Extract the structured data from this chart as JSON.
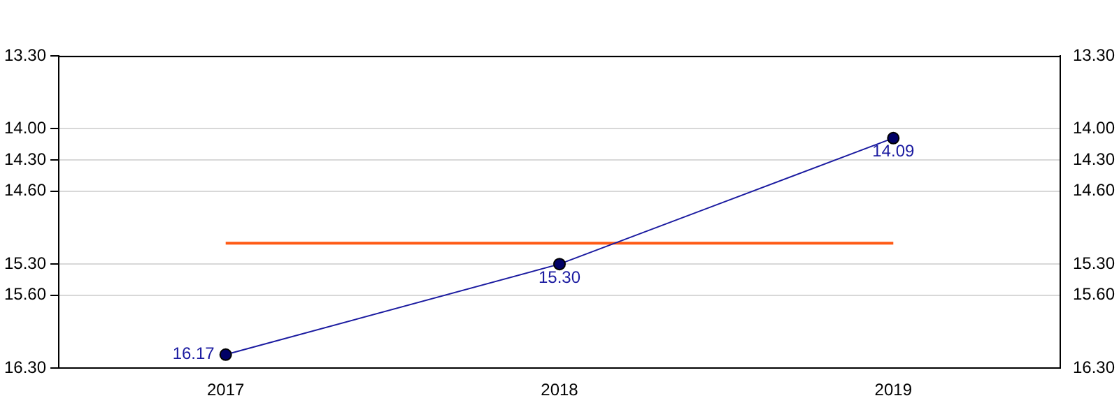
{
  "chart_data": {
    "type": "line",
    "categories": [
      "2017",
      "2018",
      "2019"
    ],
    "series": [
      {
        "color": "#1a1aa0",
        "values": [
          16.17,
          15.3,
          14.09
        ],
        "value_labels": [
          "16.17",
          "15.30",
          "14.09"
        ],
        "marker": "circle"
      },
      {
        "color": "#ff5a14",
        "values": [
          15.1,
          15.1,
          15.1
        ],
        "marker": "none"
      }
    ],
    "ylim": [
      16.3,
      13.3
    ],
    "yticks": [
      {
        "value": 13.3,
        "label": "13.30"
      },
      {
        "value": 14.0,
        "label": "14.00"
      },
      {
        "value": 14.3,
        "label": "14.30"
      },
      {
        "value": 14.6,
        "label": "14.60"
      },
      {
        "value": 15.3,
        "label": "15.30"
      },
      {
        "value": 15.6,
        "label": "15.60"
      },
      {
        "value": 16.3,
        "label": "16.30"
      }
    ],
    "y2lim": [
      16.3,
      13.3
    ],
    "y2ticks": [
      {
        "value": 13.3,
        "label": "13.30"
      },
      {
        "value": 14.0,
        "label": "14.00"
      },
      {
        "value": 14.3,
        "label": "14.30"
      },
      {
        "value": 14.6,
        "label": "14.60"
      },
      {
        "value": 15.3,
        "label": "15.30"
      },
      {
        "value": 15.6,
        "label": "15.60"
      },
      {
        "value": 16.3,
        "label": "16.30"
      }
    ],
    "grid": "y",
    "legend": false
  }
}
